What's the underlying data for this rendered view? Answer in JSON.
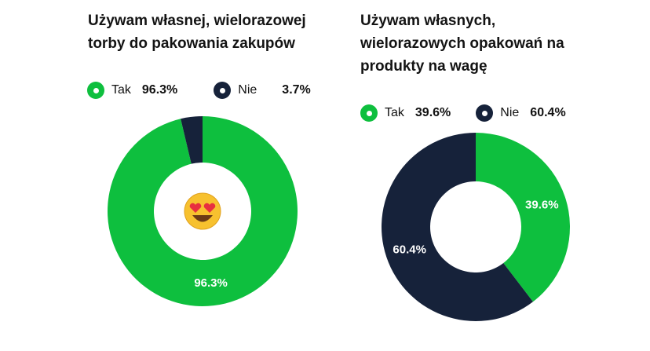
{
  "colors": {
    "tak": "#0ebf3e",
    "nie": "#16223a"
  },
  "chart_data": [
    {
      "type": "pie",
      "title": "Używam własnej, wielorazowej torby do pakowania zakupów",
      "title_lines": [
        "Używam własnej, wielorazowej",
        "torby do pakowania zakupów"
      ],
      "categories": [
        "Tak",
        "Nie"
      ],
      "values": [
        96.3,
        3.7
      ],
      "value_labels": [
        "96.3%",
        "3.7%"
      ],
      "data_labels": [
        "96.3%",
        ""
      ],
      "center_icon": "heart-eyes-emoji",
      "legend": "top"
    },
    {
      "type": "pie",
      "title": "Używam własnych, wielorazowych opakowań na produkty na wagę",
      "title_lines": [
        "Używam własnych,",
        "wielorazowych opakowań na",
        "produkty na wagę"
      ],
      "categories": [
        "Tak",
        "Nie"
      ],
      "values": [
        39.6,
        60.4
      ],
      "value_labels": [
        "39.6%",
        "60.4%"
      ],
      "data_labels": [
        "39.6%",
        "60.4%"
      ],
      "legend": "top"
    }
  ]
}
